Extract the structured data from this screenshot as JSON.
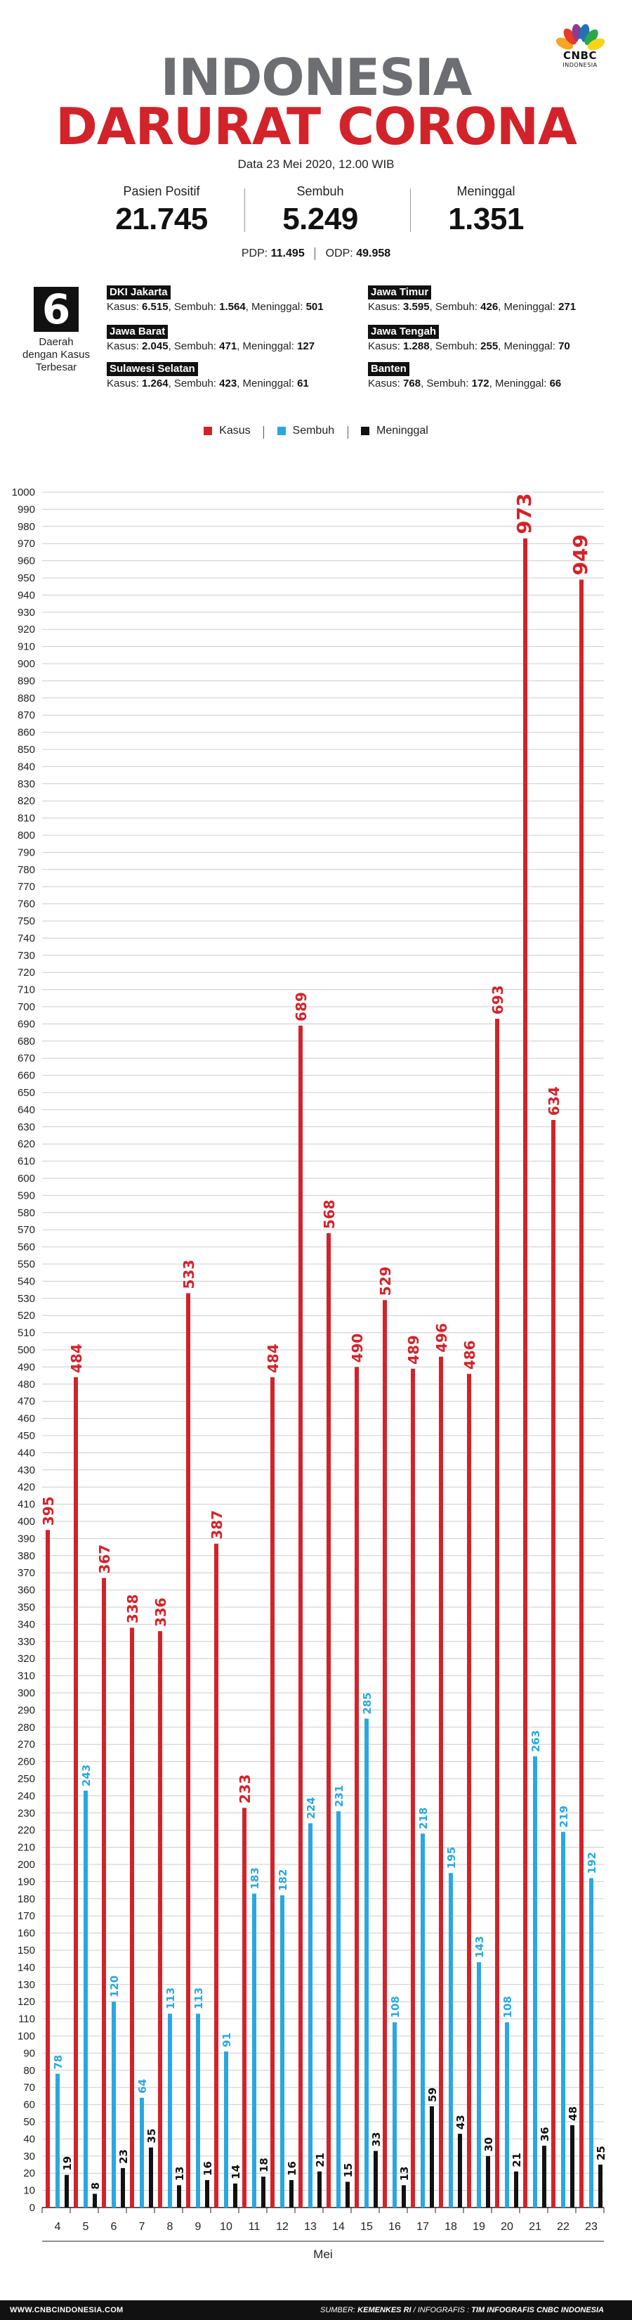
{
  "header": {
    "logo_text": "CNBC",
    "logo_sub": "INDONESIA",
    "title_line1": "INDONESIA",
    "title_line2": "DARURAT CORONA",
    "date": "Data 23 Mei 2020, 12.00 WIB"
  },
  "stats": [
    {
      "label": "Pasien Positif",
      "value": "21.745"
    },
    {
      "label": "Sembuh",
      "value": "5.249"
    },
    {
      "label": "Meninggal",
      "value": "1.351"
    }
  ],
  "pdp": {
    "pdp_label": "PDP:",
    "pdp_value": "11.495",
    "odp_label": "ODP:",
    "odp_value": "49.958"
  },
  "regions_block": {
    "count": "6",
    "label": "Daerah dengan Kasus Terbesar",
    "kasus_label": "Kasus:",
    "sembuh_label": "Sembuh:",
    "meninggal_label": "Meninggal:",
    "regions": [
      {
        "name": "DKI Jakarta",
        "kasus": "6.515",
        "sembuh": "1.564",
        "meninggal": "501"
      },
      {
        "name": "Jawa Timur",
        "kasus": "3.595",
        "sembuh": "426",
        "meninggal": "271"
      },
      {
        "name": "Jawa Barat",
        "kasus": "2.045",
        "sembuh": "471",
        "meninggal": "127"
      },
      {
        "name": "Jawa Tengah",
        "kasus": "1.288",
        "sembuh": "255",
        "meninggal": "70"
      },
      {
        "name": "Sulawesi Selatan",
        "kasus": "1.264",
        "sembuh": "423",
        "meninggal": "61"
      },
      {
        "name": "Banten",
        "kasus": "768",
        "sembuh": "172",
        "meninggal": "66"
      }
    ]
  },
  "legend": [
    {
      "label": "Kasus",
      "color": "#d2232a"
    },
    {
      "label": "Sembuh",
      "color": "#29a8e0"
    },
    {
      "label": "Meninggal",
      "color": "#111111"
    }
  ],
  "chart_data": {
    "type": "bar",
    "title": "",
    "xlabel": "Mei",
    "ylabel": "",
    "ylim": [
      0,
      1000
    ],
    "ytick_step": 10,
    "grid": true,
    "legend_position": "top",
    "categories": [
      "4",
      "5",
      "6",
      "7",
      "8",
      "9",
      "10",
      "11",
      "12",
      "13",
      "14",
      "15",
      "16",
      "17",
      "18",
      "19",
      "20",
      "21",
      "22",
      "23"
    ],
    "series": [
      {
        "name": "Kasus",
        "color": "#d2232a",
        "values": [
          395,
          484,
          367,
          338,
          336,
          533,
          387,
          233,
          484,
          689,
          568,
          490,
          529,
          489,
          496,
          486,
          693,
          973,
          634,
          949
        ]
      },
      {
        "name": "Sembuh",
        "color": "#29a8e0",
        "values": [
          78,
          243,
          120,
          64,
          113,
          113,
          91,
          183,
          182,
          224,
          231,
          285,
          108,
          218,
          195,
          143,
          108,
          263,
          219,
          192
        ]
      },
      {
        "name": "Meninggal",
        "color": "#111111",
        "values": [
          19,
          8,
          23,
          35,
          13,
          16,
          14,
          18,
          16,
          21,
          15,
          33,
          13,
          59,
          43,
          30,
          21,
          36,
          48,
          25
        ]
      }
    ]
  },
  "footer": {
    "website": "WWW.CNBCINDONESIA.COM",
    "source_label": "SUMBER:",
    "source_value": "KEMENKES RI",
    "infografis_label": "INFOGRAFIS :",
    "infografis_value": "TIM INFOGRAFIS CNBC INDONESIA"
  }
}
